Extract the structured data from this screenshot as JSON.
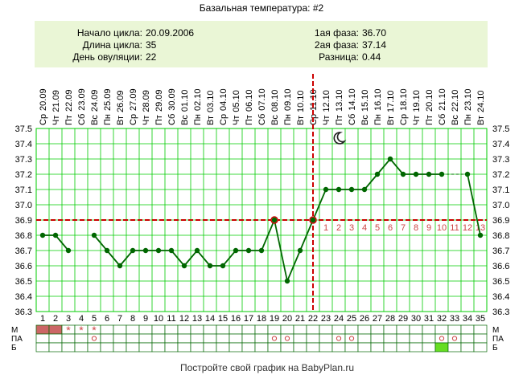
{
  "title": "Базальная температура: #2",
  "info": {
    "left": [
      {
        "label": "Начало цикла:",
        "value": "20.09.2006"
      },
      {
        "label": "Длина цикла:",
        "value": "35"
      },
      {
        "label": "День овуляции:",
        "value": "22"
      }
    ],
    "right": [
      {
        "label": "1ая фаза:",
        "value": "36.70"
      },
      {
        "label": "2ая фаза:",
        "value": "37.14"
      },
      {
        "label": "Разница:",
        "value": "0.44"
      }
    ]
  },
  "footer": "Постройте свой график на BabyPlan.ru",
  "row_labels": [
    "М",
    "ПА",
    "Б"
  ],
  "marks": {
    "star": "*",
    "circle": "o"
  },
  "colors": {
    "line": "#006600",
    "grid": "#00cc00",
    "red": "#cc0000",
    "phase_number": "#cc4444",
    "info_bg": "#eaf6d6",
    "menstruation": "#cc6666",
    "star_mark": "#cc4444",
    "circle_mark": "#cc4444",
    "b_cell": "#66dd22"
  },
  "moon_icon": "moon-icon",
  "chart_data": {
    "type": "line",
    "ylim": [
      36.3,
      37.5
    ],
    "yticks": [
      "36.3",
      "36.4",
      "36.5",
      "36.6",
      "36.7",
      "36.8",
      "36.9",
      "37.0",
      "37.1",
      "37.2",
      "37.3",
      "37.4",
      "37.5"
    ],
    "cover_line": 36.9,
    "ovulation_day": 22,
    "moon_day": 24,
    "days": [
      1,
      2,
      3,
      4,
      5,
      6,
      7,
      8,
      9,
      10,
      11,
      12,
      13,
      14,
      15,
      16,
      17,
      18,
      19,
      20,
      21,
      22,
      23,
      24,
      25,
      26,
      27,
      28,
      29,
      30,
      31,
      32,
      33,
      34,
      35
    ],
    "weekdays": [
      "Ср",
      "Чт",
      "Пт",
      "Сб",
      "Вс",
      "Пн",
      "Вт",
      "Ср",
      "Чт",
      "Пт",
      "Сб",
      "Вс",
      "Пн",
      "Вт",
      "Ср",
      "Чт",
      "Пт",
      "Сб",
      "Вс",
      "Пн",
      "Вт",
      "Ср",
      "Чт",
      "Пт",
      "Сб",
      "Вс",
      "Пн",
      "Вт",
      "Ср",
      "Чт",
      "Пт",
      "Сб",
      "Вс",
      "Пн",
      "Вт"
    ],
    "dates": [
      "20.09",
      "21.09",
      "22.09",
      "23.09",
      "24.09",
      "25.09",
      "26.09",
      "27.09",
      "28.09",
      "29.09",
      "30.09",
      "01.10",
      "02.10",
      "03.10",
      "04.10",
      "05.10",
      "06.10",
      "07.10",
      "08.10",
      "09.10",
      "10.10",
      "11.10",
      "12.10",
      "13.10",
      "14.10",
      "15.10",
      "16.10",
      "17.10",
      "18.10",
      "19.10",
      "20.10",
      "21.10",
      "22.10",
      "23.10",
      "24.10"
    ],
    "temps": [
      36.8,
      36.8,
      36.7,
      null,
      36.8,
      36.7,
      36.6,
      36.7,
      36.7,
      36.7,
      36.7,
      36.6,
      36.7,
      36.6,
      36.6,
      36.7,
      36.7,
      36.7,
      36.9,
      36.5,
      36.7,
      36.9,
      37.1,
      37.1,
      37.1,
      37.1,
      37.2,
      37.3,
      37.2,
      37.2,
      37.2,
      37.2,
      null,
      37.2,
      36.8
    ],
    "missing_markers": [
      4
    ],
    "dashed_segments": [
      [
        5,
        6
      ],
      [
        32,
        34
      ]
    ],
    "highlight_points": [
      19,
      22
    ],
    "phase2_numbers": [
      "1",
      "2",
      "3",
      "4",
      "5",
      "6",
      "7",
      "8",
      "9",
      "10",
      "11",
      "12",
      "13"
    ],
    "m_row": [
      "fill",
      "fill",
      "star",
      "star",
      "star",
      "",
      "",
      "",
      "",
      "",
      "",
      "",
      "",
      "",
      "",
      "",
      "",
      "",
      "",
      "",
      "",
      "",
      "",
      "",
      "",
      "",
      "",
      "",
      "",
      "",
      "",
      "",
      "",
      "",
      ""
    ],
    "pa_row": [
      "",
      "",
      "",
      "",
      "circle",
      "",
      "",
      "",
      "",
      "",
      "",
      "",
      "",
      "",
      "",
      "",
      "",
      "",
      "circle",
      "circle",
      "",
      "",
      "",
      "circle",
      "circle",
      "",
      "",
      "",
      "",
      "",
      "",
      "circle",
      "circle",
      "",
      ""
    ],
    "b_row": [
      "",
      "",
      "",
      "",
      "",
      "",
      "",
      "",
      "",
      "",
      "",
      "",
      "",
      "",
      "",
      "",
      "",
      "",
      "",
      "",
      "",
      "",
      "",
      "",
      "",
      "",
      "",
      "",
      "",
      "",
      "",
      "fill",
      "",
      "",
      ""
    ]
  }
}
